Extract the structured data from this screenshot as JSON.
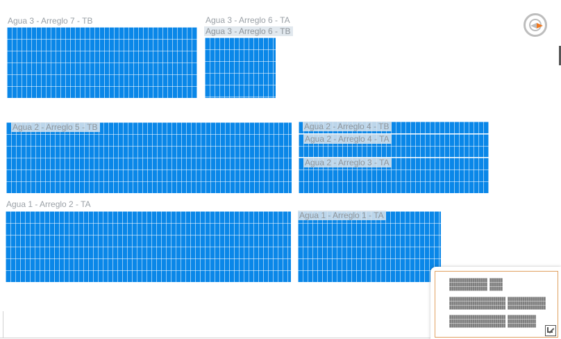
{
  "arrays": [
    {
      "id": "agua3-arreglo7-tb",
      "label": "Agua 3 - Arreglo 7 - TB"
    },
    {
      "id": "agua3-arreglo6-ta",
      "label": "Agua 3 - Arreglo 6 - TA"
    },
    {
      "id": "agua3-arreglo6-tb",
      "label": "Agua 3 - Arreglo 6 - TB"
    },
    {
      "id": "agua2-arreglo5-tb",
      "label": "Agua 2 - Arreglo 5 - TB"
    },
    {
      "id": "agua2-arreglo4-tb",
      "label": "Agua 2 - Arreglo 4 - TB"
    },
    {
      "id": "agua2-arreglo4-ta",
      "label": "Agua 2 - Arreglo 4 - TA"
    },
    {
      "id": "agua2-arreglo3-ta",
      "label": "Agua 2 - Arreglo 3 - TA"
    },
    {
      "id": "agua1-arreglo2-ta",
      "label": "Agua 1 - Arreglo 2 - TA"
    },
    {
      "id": "agua1-arreglo1-ta",
      "label": "Agua 1 - Arreglo 1 - TA"
    }
  ],
  "controls": {
    "compass_icon": "compass-icon",
    "overview_toggle_icon": "collapse-arrow-icon"
  },
  "colors": {
    "panel_fill": "#0a87e8",
    "overview_fill": "#7f7f7f",
    "compass_accent": "#f0781e"
  }
}
